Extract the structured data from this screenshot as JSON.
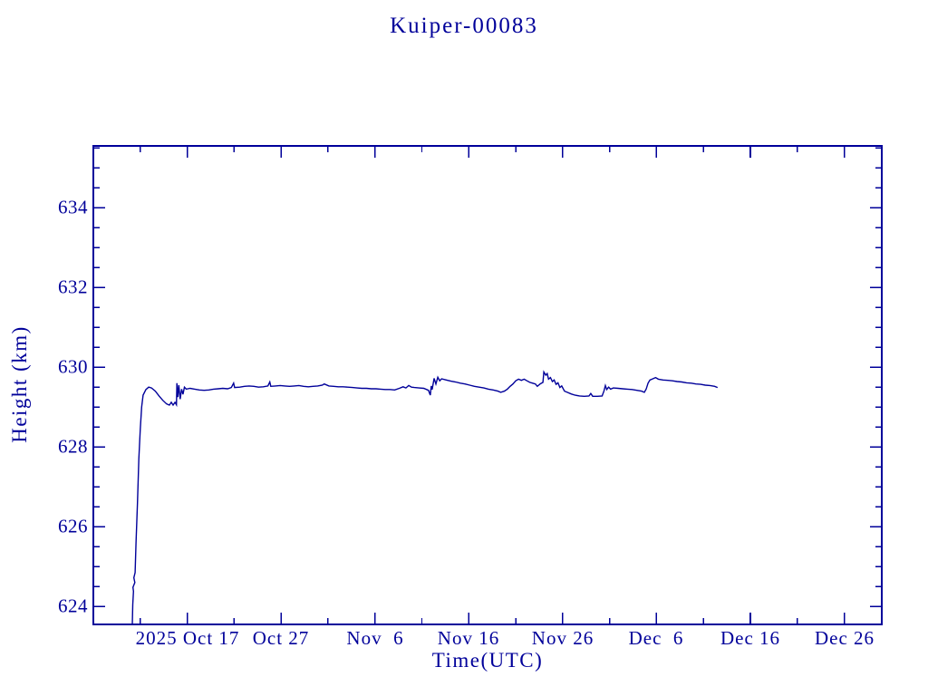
{
  "chart_data": {
    "type": "line",
    "title": "Kuiper-00083",
    "xlabel": "Time(UTC)",
    "ylabel": "Height (km)",
    "line_color": "#00009a",
    "background_color": "#ffffff",
    "grid": false,
    "legend": false,
    "x_axis": {
      "unit": "days since 2025-10-07 (UTC)",
      "start_date": "2025-10-07",
      "end_date": "2025-12-30",
      "range": [
        0,
        84
      ],
      "major_tick_days": [
        10,
        20,
        30,
        40,
        50,
        60,
        70,
        80
      ],
      "minor_tick_days": [
        5,
        15,
        25,
        35,
        45,
        55,
        65,
        75
      ],
      "tick_labels": [
        "2025 Oct 17",
        "Oct 27",
        "Nov  6",
        "Nov 16",
        "Nov 26",
        "Dec  6",
        "Dec 16",
        "Dec 26"
      ]
    },
    "y_axis": {
      "range": [
        623.55,
        635.55
      ],
      "major_ticks": [
        624,
        626,
        628,
        630,
        632,
        634
      ],
      "minor_tick_step": 0.5,
      "tick_labels": [
        "624",
        "626",
        "628",
        "630",
        "632",
        "634"
      ]
    },
    "series": [
      {
        "name": "Kuiper-00083 height",
        "points": [
          [
            4.15,
            623.55
          ],
          [
            4.2,
            624.05
          ],
          [
            4.28,
            624.38
          ],
          [
            4.22,
            624.48
          ],
          [
            4.42,
            624.6
          ],
          [
            4.32,
            624.72
          ],
          [
            4.45,
            624.85
          ],
          [
            4.55,
            625.6
          ],
          [
            4.7,
            626.6
          ],
          [
            4.85,
            627.7
          ],
          [
            5.0,
            628.45
          ],
          [
            5.15,
            629.0
          ],
          [
            5.3,
            629.3
          ],
          [
            5.6,
            629.44
          ],
          [
            5.9,
            629.5
          ],
          [
            6.2,
            629.48
          ],
          [
            6.6,
            629.4
          ],
          [
            7.0,
            629.28
          ],
          [
            7.4,
            629.17
          ],
          [
            7.8,
            629.08
          ],
          [
            8.1,
            629.05
          ],
          [
            8.3,
            629.12
          ],
          [
            8.5,
            629.05
          ],
          [
            8.7,
            629.12
          ],
          [
            8.85,
            629.06
          ],
          [
            8.9,
            629.6
          ],
          [
            9.0,
            629.25
          ],
          [
            9.1,
            629.55
          ],
          [
            9.25,
            629.2
          ],
          [
            9.4,
            629.45
          ],
          [
            9.55,
            629.32
          ],
          [
            9.7,
            629.5
          ],
          [
            9.9,
            629.45
          ],
          [
            10.3,
            629.47
          ],
          [
            10.8,
            629.45
          ],
          [
            11.3,
            629.43
          ],
          [
            11.8,
            629.42
          ],
          [
            12.3,
            629.43
          ],
          [
            12.8,
            629.45
          ],
          [
            13.3,
            629.46
          ],
          [
            13.8,
            629.47
          ],
          [
            14.3,
            629.46
          ],
          [
            14.7,
            629.49
          ],
          [
            14.95,
            629.6
          ],
          [
            15.05,
            629.49
          ],
          [
            15.6,
            629.5
          ],
          [
            16.1,
            629.52
          ],
          [
            16.6,
            629.53
          ],
          [
            17.1,
            629.52
          ],
          [
            17.6,
            629.5
          ],
          [
            18.1,
            629.51
          ],
          [
            18.6,
            629.53
          ],
          [
            18.8,
            629.63
          ],
          [
            18.9,
            629.52
          ],
          [
            19.4,
            629.53
          ],
          [
            19.9,
            629.54
          ],
          [
            20.4,
            629.53
          ],
          [
            20.9,
            629.52
          ],
          [
            21.4,
            629.53
          ],
          [
            21.9,
            629.54
          ],
          [
            22.4,
            629.52
          ],
          [
            22.9,
            629.51
          ],
          [
            23.4,
            629.52
          ],
          [
            23.9,
            629.53
          ],
          [
            24.4,
            629.55
          ],
          [
            24.6,
            629.58
          ],
          [
            25.1,
            629.53
          ],
          [
            25.6,
            629.52
          ],
          [
            26.1,
            629.51
          ],
          [
            26.6,
            629.51
          ],
          [
            27.1,
            629.5
          ],
          [
            27.6,
            629.49
          ],
          [
            28.1,
            629.48
          ],
          [
            28.6,
            629.47
          ],
          [
            29.1,
            629.47
          ],
          [
            29.6,
            629.46
          ],
          [
            30.1,
            629.46
          ],
          [
            30.6,
            629.45
          ],
          [
            31.1,
            629.44
          ],
          [
            31.6,
            629.44
          ],
          [
            32.1,
            629.43
          ],
          [
            32.6,
            629.47
          ],
          [
            33.0,
            629.51
          ],
          [
            33.3,
            629.48
          ],
          [
            33.6,
            629.54
          ],
          [
            33.9,
            629.5
          ],
          [
            34.2,
            629.49
          ],
          [
            34.7,
            629.48
          ],
          [
            35.2,
            629.47
          ],
          [
            35.7,
            629.42
          ],
          [
            35.9,
            629.3
          ],
          [
            36.0,
            629.53
          ],
          [
            36.1,
            629.44
          ],
          [
            36.3,
            629.72
          ],
          [
            36.5,
            629.58
          ],
          [
            36.7,
            629.75
          ],
          [
            36.9,
            629.66
          ],
          [
            37.1,
            629.71
          ],
          [
            37.6,
            629.68
          ],
          [
            38.1,
            629.65
          ],
          [
            38.6,
            629.63
          ],
          [
            39.1,
            629.6
          ],
          [
            39.6,
            629.58
          ],
          [
            40.1,
            629.55
          ],
          [
            40.6,
            629.52
          ],
          [
            41.1,
            629.5
          ],
          [
            41.6,
            629.48
          ],
          [
            42.1,
            629.45
          ],
          [
            42.6,
            629.43
          ],
          [
            43.1,
            629.4
          ],
          [
            43.4,
            629.37
          ],
          [
            43.8,
            629.4
          ],
          [
            44.1,
            629.45
          ],
          [
            44.4,
            629.52
          ],
          [
            44.7,
            629.58
          ],
          [
            45.0,
            629.66
          ],
          [
            45.3,
            629.7
          ],
          [
            45.6,
            629.67
          ],
          [
            45.9,
            629.7
          ],
          [
            46.2,
            629.66
          ],
          [
            46.5,
            629.62
          ],
          [
            46.8,
            629.6
          ],
          [
            47.1,
            629.58
          ],
          [
            47.3,
            629.52
          ],
          [
            47.6,
            629.58
          ],
          [
            47.9,
            629.62
          ],
          [
            48.0,
            629.88
          ],
          [
            48.2,
            629.8
          ],
          [
            48.35,
            629.84
          ],
          [
            48.5,
            629.7
          ],
          [
            48.7,
            629.74
          ],
          [
            48.9,
            629.64
          ],
          [
            49.1,
            629.68
          ],
          [
            49.3,
            629.57
          ],
          [
            49.5,
            629.61
          ],
          [
            49.7,
            629.49
          ],
          [
            49.9,
            629.53
          ],
          [
            50.2,
            629.4
          ],
          [
            50.5,
            629.37
          ],
          [
            50.9,
            629.33
          ],
          [
            51.3,
            629.3
          ],
          [
            51.8,
            629.28
          ],
          [
            52.3,
            629.27
          ],
          [
            52.8,
            629.28
          ],
          [
            53.0,
            629.34
          ],
          [
            53.2,
            629.27
          ],
          [
            53.7,
            629.27
          ],
          [
            54.2,
            629.28
          ],
          [
            54.4,
            629.4
          ],
          [
            54.55,
            629.54
          ],
          [
            54.7,
            629.44
          ],
          [
            54.9,
            629.5
          ],
          [
            55.1,
            629.45
          ],
          [
            55.4,
            629.48
          ],
          [
            55.9,
            629.47
          ],
          [
            56.4,
            629.46
          ],
          [
            56.9,
            629.45
          ],
          [
            57.4,
            629.44
          ],
          [
            57.9,
            629.42
          ],
          [
            58.4,
            629.4
          ],
          [
            58.7,
            629.37
          ],
          [
            58.9,
            629.45
          ],
          [
            59.1,
            629.6
          ],
          [
            59.3,
            629.68
          ],
          [
            59.6,
            629.71
          ],
          [
            59.9,
            629.74
          ],
          [
            60.2,
            629.7
          ],
          [
            60.7,
            629.68
          ],
          [
            61.2,
            629.67
          ],
          [
            61.7,
            629.66
          ],
          [
            62.2,
            629.64
          ],
          [
            62.7,
            629.63
          ],
          [
            63.2,
            629.61
          ],
          [
            63.7,
            629.6
          ],
          [
            64.2,
            629.58
          ],
          [
            64.7,
            629.57
          ],
          [
            65.2,
            629.55
          ],
          [
            65.7,
            629.54
          ],
          [
            66.2,
            629.52
          ],
          [
            66.5,
            629.49
          ]
        ]
      }
    ]
  }
}
